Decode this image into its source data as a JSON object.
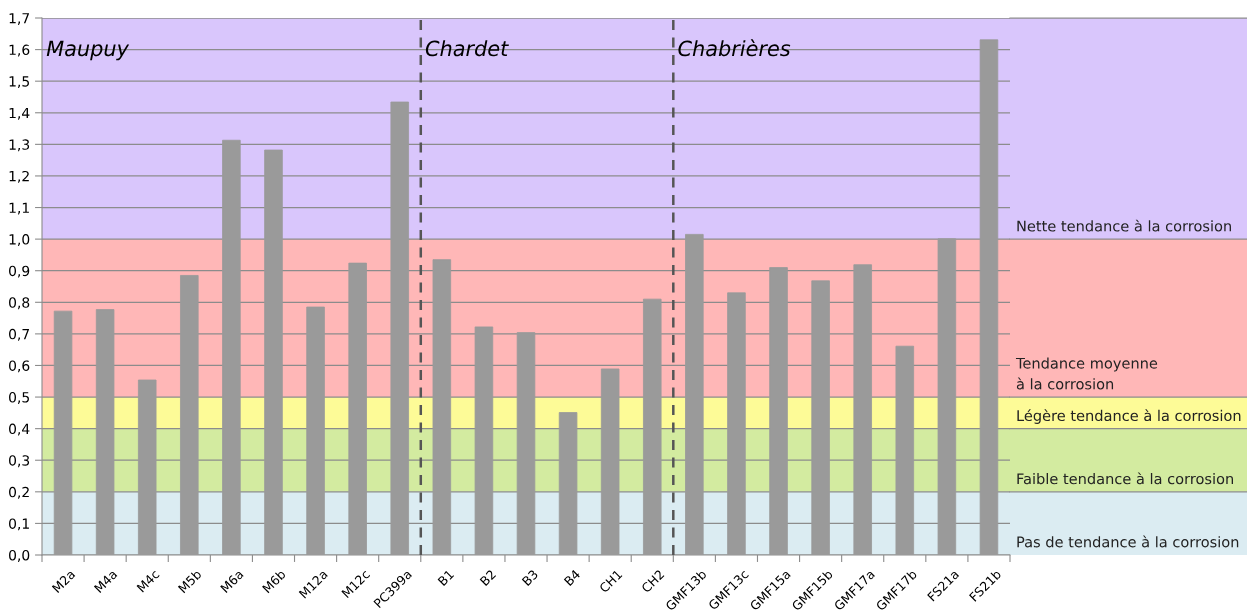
{
  "chart_data": {
    "type": "bar",
    "categories": [
      "M2a",
      "M4a",
      "M4c",
      "M5b",
      "M6a",
      "M6b",
      "M12a",
      "M12c",
      "PC399a",
      "B1",
      "B2",
      "B3",
      "B4",
      "CH1",
      "CH2",
      "GMF13b",
      "GMF13c",
      "GMF15a",
      "GMF15b",
      "GMF17a",
      "GMF17b",
      "FS21a",
      "FS21b"
    ],
    "values": [
      0.772,
      0.777,
      0.554,
      0.885,
      1.313,
      1.282,
      0.785,
      0.924,
      1.434,
      0.935,
      0.722,
      0.704,
      0.451,
      0.589,
      0.81,
      1.015,
      0.83,
      0.91,
      0.868,
      0.919,
      0.661,
      1.001,
      1.631
    ],
    "color": "#9a9a9a",
    "ylim": [
      0,
      1.7
    ],
    "yticks": [
      {
        "value": 0,
        "label": "0,0"
      },
      {
        "value": 0.1,
        "label": "0,1"
      },
      {
        "value": 0.2,
        "label": "0,2"
      },
      {
        "value": 0.3,
        "label": "0,3"
      },
      {
        "value": 0.4,
        "label": "0,4"
      },
      {
        "value": 0.5,
        "label": "0,5"
      },
      {
        "value": 0.6,
        "label": "0,6"
      },
      {
        "value": 0.7,
        "label": "0,7"
      },
      {
        "value": 0.8,
        "label": "0,8"
      },
      {
        "value": 0.9,
        "label": "0,9"
      },
      {
        "value": 1.0,
        "label": "1,0"
      },
      {
        "value": 1.1,
        "label": "1,1"
      },
      {
        "value": 1.2,
        "label": "1,2"
      },
      {
        "value": 1.3,
        "label": "1,3"
      },
      {
        "value": 1.4,
        "label": "1,4"
      },
      {
        "value": 1.5,
        "label": "1,5"
      },
      {
        "value": 1.6,
        "label": "1,6"
      },
      {
        "value": 1.7,
        "label": "1,7"
      }
    ],
    "grid": "y",
    "bands": [
      {
        "axis": "y",
        "from": 0,
        "to": 0.2,
        "label": "Pas de tendance à la corrosion",
        "color": "#dbecf2"
      },
      {
        "axis": "y",
        "from": 0.2,
        "to": 0.4,
        "label": "Faible tendance à la corrosion",
        "color": "#d3eba0"
      },
      {
        "axis": "y",
        "from": 0.4,
        "to": 0.5,
        "label": "Légère tendance à la corrosion",
        "color": "#fdfb97"
      },
      {
        "axis": "y",
        "from": 0.5,
        "to": 1.0,
        "label": "Tendance moyenne\nà la corrosion",
        "color": "#ffb7b7"
      },
      {
        "axis": "y",
        "from": 1.0,
        "to": 1.7,
        "label": "Nette tendance à la corrosion",
        "color": "#d9c6fc"
      }
    ],
    "annotations": [
      "Maupuy",
      "Chardet",
      "Chabrières"
    ]
  }
}
